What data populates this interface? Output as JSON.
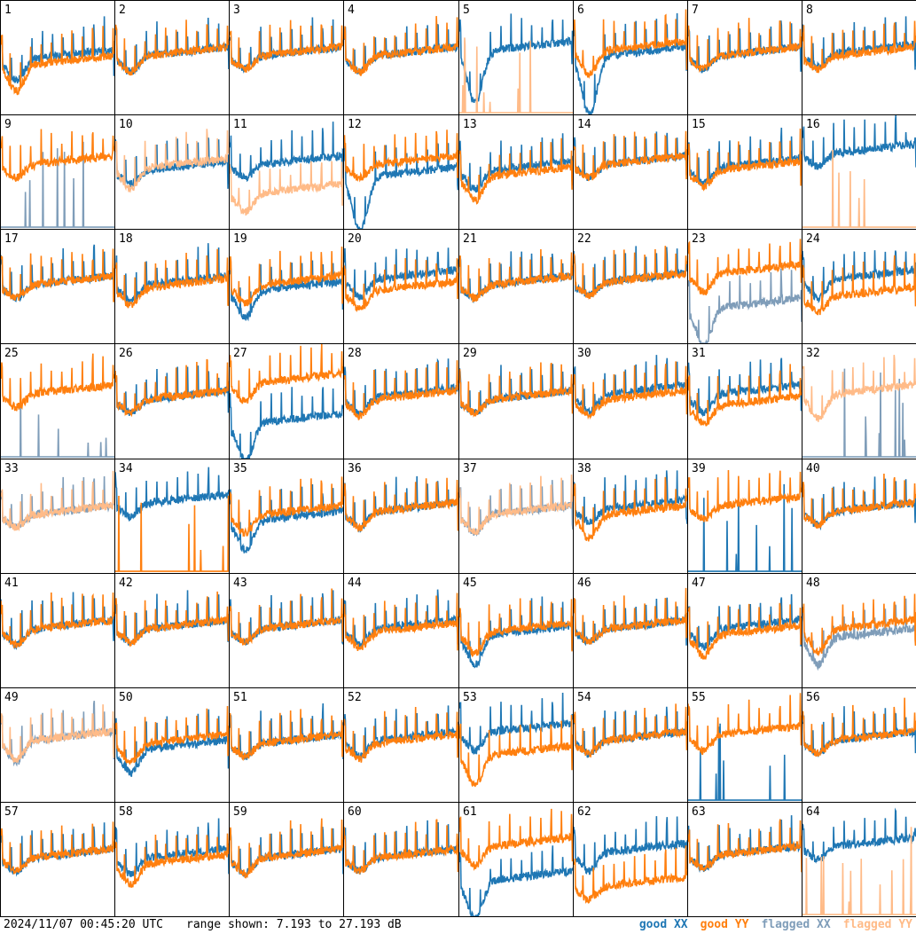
{
  "footer": {
    "timestamp": "2024/11/07 00:45:20 UTC",
    "range": "range shown: 7.193 to 27.193 dB"
  },
  "legend": {
    "good_xx": "good XX",
    "good_yy": "good YY",
    "flagged_xx": "flagged XX",
    "flagged_yy": "flagged YY"
  },
  "colors": {
    "good_xx": "#1f77b4",
    "good_yy": "#ff7f0e",
    "flagged_xx": "#7f9db9",
    "flagged_yy": "#ffbb88"
  },
  "chart_data": {
    "type": "line",
    "ylim": [
      7.193,
      27.193
    ],
    "grid": false,
    "legend_placement": "bottom-right",
    "tiles": [
      {
        "n": "1",
        "xx": "good",
        "yy": "good",
        "xx_level": 17.5,
        "yy_level": 16.5,
        "xx_dip": 14,
        "yy_dip": 12
      },
      {
        "n": "2",
        "xx": "good",
        "yy": "good",
        "xx_level": 18,
        "yy_level": 18,
        "xx_dip": 15.5,
        "yy_dip": 15.5
      },
      {
        "n": "3",
        "xx": "good",
        "yy": "good",
        "xx_level": 18,
        "yy_level": 18,
        "xx_dip": 16,
        "yy_dip": 16
      },
      {
        "n": "4",
        "xx": "good",
        "yy": "good",
        "xx_level": 18,
        "yy_level": 18,
        "xx_dip": 15.5,
        "yy_dip": 15.5
      },
      {
        "n": "5",
        "xx": "good",
        "yy": "flagged",
        "xx_level": 19,
        "yy_level": 7.5,
        "xx_dip": 10,
        "yy_dip": 7.5
      },
      {
        "n": "6",
        "xx": "good",
        "yy": "good",
        "xx_level": 18,
        "yy_level": 19,
        "xx_dip": 8,
        "yy_dip": 15
      },
      {
        "n": "7",
        "xx": "good",
        "yy": "good",
        "xx_level": 18,
        "yy_level": 18,
        "xx_dip": 16,
        "yy_dip": 16
      },
      {
        "n": "8",
        "xx": "good",
        "yy": "good",
        "xx_level": 18.5,
        "yy_level": 18,
        "xx_dip": 16.5,
        "yy_dip": 16
      },
      {
        "n": "9",
        "xx": "flagged",
        "yy": "good",
        "xx_level": 7.5,
        "yy_level": 19,
        "xx_dip": 7.5,
        "yy_dip": 17
      },
      {
        "n": "10",
        "xx": "good",
        "yy": "flagged",
        "xx_level": 18,
        "yy_level": 18.5,
        "xx_dip": 16,
        "yy_dip": 15
      },
      {
        "n": "11",
        "xx": "good",
        "yy": "flagged",
        "xx_level": 19,
        "yy_level": 14,
        "xx_dip": 17,
        "yy_dip": 11
      },
      {
        "n": "12",
        "xx": "good",
        "yy": "good",
        "xx_level": 17,
        "yy_level": 19,
        "xx_dip": 7.5,
        "yy_dip": 17
      },
      {
        "n": "13",
        "xx": "good",
        "yy": "good",
        "xx_level": 18,
        "yy_level": 17,
        "xx_dip": 15,
        "yy_dip": 13
      },
      {
        "n": "14",
        "xx": "good",
        "yy": "good",
        "xx_level": 19,
        "yy_level": 19,
        "xx_dip": 17,
        "yy_dip": 17
      },
      {
        "n": "15",
        "xx": "good",
        "yy": "good",
        "xx_level": 18.5,
        "yy_level": 18,
        "xx_dip": 16,
        "yy_dip": 15.5
      },
      {
        "n": "16",
        "xx": "good",
        "yy": "flagged",
        "xx_level": 21,
        "yy_level": 7.5,
        "xx_dip": 19,
        "yy_dip": 7.5
      },
      {
        "n": "17",
        "xx": "good",
        "yy": "good",
        "xx_level": 18,
        "yy_level": 18,
        "xx_dip": 16,
        "yy_dip": 16
      },
      {
        "n": "18",
        "xx": "good",
        "yy": "good",
        "xx_level": 18,
        "yy_level": 17.5,
        "xx_dip": 15.5,
        "yy_dip": 14.5
      },
      {
        "n": "19",
        "xx": "good",
        "yy": "good",
        "xx_level": 17,
        "yy_level": 18,
        "xx_dip": 12.5,
        "yy_dip": 15
      },
      {
        "n": "20",
        "xx": "good",
        "yy": "good",
        "xx_level": 19,
        "yy_level": 17,
        "xx_dip": 16,
        "yy_dip": 14
      },
      {
        "n": "21",
        "xx": "good",
        "yy": "good",
        "xx_level": 18,
        "yy_level": 18,
        "xx_dip": 16,
        "yy_dip": 16
      },
      {
        "n": "22",
        "xx": "good",
        "yy": "good",
        "xx_level": 18.5,
        "yy_level": 18.5,
        "xx_dip": 16.5,
        "yy_dip": 16.5
      },
      {
        "n": "23",
        "xx": "flagged",
        "yy": "good",
        "xx_level": 14,
        "yy_level": 20,
        "xx_dip": 7.5,
        "yy_dip": 17
      },
      {
        "n": "24",
        "xx": "good",
        "yy": "good",
        "xx_level": 19,
        "yy_level": 16,
        "xx_dip": 16,
        "yy_dip": 13.5
      },
      {
        "n": "25",
        "xx": "flagged",
        "yy": "good",
        "xx_level": 7.5,
        "yy_level": 19,
        "xx_dip": 7.5,
        "yy_dip": 17
      },
      {
        "n": "26",
        "xx": "good",
        "yy": "good",
        "xx_level": 18,
        "yy_level": 18,
        "xx_dip": 16,
        "yy_dip": 16
      },
      {
        "n": "27",
        "xx": "good",
        "yy": "good",
        "xx_level": 14,
        "yy_level": 21,
        "xx_dip": 7.5,
        "yy_dip": 18
      },
      {
        "n": "28",
        "xx": "good",
        "yy": "good",
        "xx_level": 18.5,
        "yy_level": 18,
        "xx_dip": 16,
        "yy_dip": 15.5
      },
      {
        "n": "29",
        "xx": "good",
        "yy": "good",
        "xx_level": 18,
        "yy_level": 18,
        "xx_dip": 16,
        "yy_dip": 16
      },
      {
        "n": "30",
        "xx": "good",
        "yy": "good",
        "xx_level": 19,
        "yy_level": 18,
        "xx_dip": 16,
        "yy_dip": 15.5
      },
      {
        "n": "31",
        "xx": "good",
        "yy": "good",
        "xx_level": 19,
        "yy_level": 17,
        "xx_dip": 16,
        "yy_dip": 14
      },
      {
        "n": "32",
        "xx": "flagged",
        "yy": "flagged",
        "xx_level": 7.5,
        "yy_level": 19,
        "xx_dip": 7.5,
        "yy_dip": 15
      },
      {
        "n": "33",
        "xx": "flagged",
        "yy": "flagged",
        "xx_level": 18,
        "yy_level": 18,
        "xx_dip": 16,
        "yy_dip": 16
      },
      {
        "n": "34",
        "xx": "good",
        "yy": "good",
        "xx_level": 20,
        "yy_level": 7.5,
        "xx_dip": 18,
        "yy_dip": 7.5
      },
      {
        "n": "35",
        "xx": "good",
        "yy": "good",
        "xx_level": 17,
        "yy_level": 18,
        "xx_dip": 12,
        "yy_dip": 15
      },
      {
        "n": "36",
        "xx": "good",
        "yy": "good",
        "xx_level": 18.5,
        "yy_level": 18.5,
        "xx_dip": 16,
        "yy_dip": 16
      },
      {
        "n": "37",
        "xx": "flagged",
        "yy": "flagged",
        "xx_level": 18,
        "yy_level": 18,
        "xx_dip": 15,
        "yy_dip": 15
      },
      {
        "n": "38",
        "xx": "good",
        "yy": "good",
        "xx_level": 19,
        "yy_level": 18,
        "xx_dip": 17,
        "yy_dip": 14
      },
      {
        "n": "39",
        "xx": "good",
        "yy": "good",
        "xx_level": 7.5,
        "yy_level": 19.5,
        "xx_dip": 7.5,
        "yy_dip": 17.5
      },
      {
        "n": "40",
        "xx": "good",
        "yy": "good",
        "xx_level": 18.5,
        "yy_level": 18.5,
        "xx_dip": 16.5,
        "yy_dip": 16.5
      },
      {
        "n": "41",
        "xx": "good",
        "yy": "good",
        "xx_level": 18,
        "yy_level": 18,
        "xx_dip": 15.5,
        "yy_dip": 15.5
      },
      {
        "n": "42",
        "xx": "good",
        "yy": "good",
        "xx_level": 18,
        "yy_level": 18,
        "xx_dip": 16,
        "yy_dip": 16
      },
      {
        "n": "43",
        "xx": "good",
        "yy": "good",
        "xx_level": 18,
        "yy_level": 18,
        "xx_dip": 16,
        "yy_dip": 16
      },
      {
        "n": "44",
        "xx": "good",
        "yy": "good",
        "xx_level": 18,
        "yy_level": 17.5,
        "xx_dip": 15.5,
        "yy_dip": 15
      },
      {
        "n": "45",
        "xx": "good",
        "yy": "good",
        "xx_level": 17,
        "yy_level": 17.5,
        "xx_dip": 12,
        "yy_dip": 14
      },
      {
        "n": "46",
        "xx": "good",
        "yy": "good",
        "xx_level": 18,
        "yy_level": 18,
        "xx_dip": 16,
        "yy_dip": 16
      },
      {
        "n": "47",
        "xx": "good",
        "yy": "good",
        "xx_level": 18,
        "yy_level": 17,
        "xx_dip": 15,
        "yy_dip": 13.5
      },
      {
        "n": "48",
        "xx": "flagged",
        "yy": "good",
        "xx_level": 16.5,
        "yy_level": 18,
        "xx_dip": 12,
        "yy_dip": 14
      },
      {
        "n": "49",
        "xx": "flagged",
        "yy": "flagged",
        "xx_level": 18.5,
        "yy_level": 18.5,
        "xx_dip": 15,
        "yy_dip": 15.5
      },
      {
        "n": "50",
        "xx": "good",
        "yy": "good",
        "xx_level": 17,
        "yy_level": 18,
        "xx_dip": 13,
        "yy_dip": 15
      },
      {
        "n": "51",
        "xx": "good",
        "yy": "good",
        "xx_level": 18,
        "yy_level": 18,
        "xx_dip": 16,
        "yy_dip": 16
      },
      {
        "n": "52",
        "xx": "good",
        "yy": "good",
        "xx_level": 18.5,
        "yy_level": 18,
        "xx_dip": 16,
        "yy_dip": 15.5
      },
      {
        "n": "53",
        "xx": "good",
        "yy": "good",
        "xx_level": 20,
        "yy_level": 16,
        "xx_dip": 17,
        "yy_dip": 11
      },
      {
        "n": "54",
        "xx": "good",
        "yy": "good",
        "xx_level": 18.5,
        "yy_level": 18.5,
        "xx_dip": 16.5,
        "yy_dip": 16.5
      },
      {
        "n": "55",
        "xx": "good",
        "yy": "good",
        "xx_level": 7.5,
        "yy_level": 19.5,
        "xx_dip": 7.5,
        "yy_dip": 17
      },
      {
        "n": "56",
        "xx": "good",
        "yy": "good",
        "xx_level": 18.5,
        "yy_level": 18.5,
        "xx_dip": 16.5,
        "yy_dip": 16.5
      },
      {
        "n": "57",
        "xx": "good",
        "yy": "good",
        "xx_level": 18,
        "yy_level": 18,
        "xx_dip": 16,
        "yy_dip": 16
      },
      {
        "n": "58",
        "xx": "good",
        "yy": "good",
        "xx_level": 18,
        "yy_level": 17,
        "xx_dip": 15.5,
        "yy_dip": 13.5
      },
      {
        "n": "59",
        "xx": "good",
        "yy": "good",
        "xx_level": 18,
        "yy_level": 18,
        "xx_dip": 15.5,
        "yy_dip": 15.5
      },
      {
        "n": "60",
        "xx": "good",
        "yy": "good",
        "xx_level": 18,
        "yy_level": 18,
        "xx_dip": 16,
        "yy_dip": 16
      },
      {
        "n": "61",
        "xx": "good",
        "yy": "good",
        "xx_level": 14,
        "yy_level": 20,
        "xx_dip": 7.5,
        "yy_dip": 17
      },
      {
        "n": "62",
        "xx": "good",
        "yy": "good",
        "xx_level": 19,
        "yy_level": 13,
        "xx_dip": 16,
        "yy_dip": 11
      },
      {
        "n": "63",
        "xx": "good",
        "yy": "good",
        "xx_level": 18.5,
        "yy_level": 18.5,
        "xx_dip": 16.5,
        "yy_dip": 16.5
      },
      {
        "n": "64",
        "xx": "good",
        "yy": "flagged",
        "xx_level": 20,
        "yy_level": 7.5,
        "xx_dip": 18,
        "yy_dip": 7.5
      }
    ]
  }
}
